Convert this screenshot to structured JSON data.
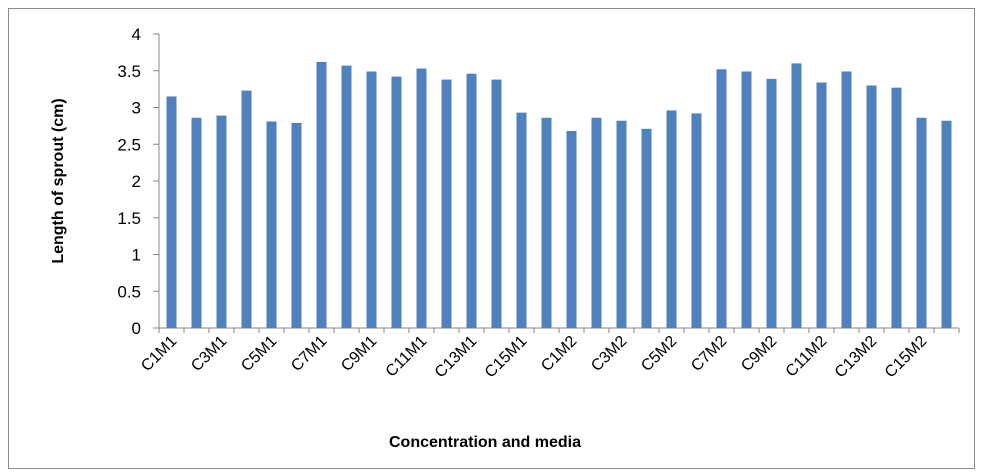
{
  "chart_data": {
    "type": "bar",
    "title": "",
    "xlabel": "Concentration and media",
    "ylabel": "Length of sprout (cm)",
    "ylim": [
      0,
      4
    ],
    "yticks": [
      "0",
      "0.5",
      "1",
      "1.5",
      "2",
      "2.5",
      "3",
      "3.5",
      "4"
    ],
    "grid": false,
    "legend": "none",
    "bar_color": "#4F81BD",
    "categories": [
      "C1M1",
      "C2M1",
      "C3M1",
      "C4M1",
      "C5M1",
      "C6M1",
      "C7M1",
      "C8M1",
      "C9M1",
      "C10M1",
      "C11M1",
      "C12M1",
      "C13M1",
      "C14M1",
      "C15M1",
      "C16M1",
      "C1M2",
      "C2M2",
      "C3M2",
      "C4M2",
      "C5M2",
      "C6M2",
      "C7M2",
      "C8M2",
      "C9M2",
      "C10M2",
      "C11M2",
      "C12M2",
      "C13M2",
      "C14M2",
      "C15M2",
      "C16M2"
    ],
    "visible_category_labels": [
      "C1M1",
      "C3M1",
      "C5M1",
      "C7M1",
      "C9M1",
      "C11M1",
      "C13M1",
      "C15M1",
      "C1M2",
      "C3M2",
      "C5M2",
      "C7M2",
      "C9M2",
      "C11M2",
      "C13M2",
      "C15M2"
    ],
    "values": [
      3.15,
      2.86,
      2.89,
      3.23,
      2.81,
      2.79,
      3.62,
      3.57,
      3.49,
      3.42,
      3.53,
      3.38,
      3.46,
      3.38,
      2.93,
      2.86,
      2.68,
      2.86,
      2.82,
      2.71,
      2.96,
      2.92,
      3.52,
      3.49,
      3.39,
      3.6,
      3.34,
      3.49,
      3.3,
      3.27,
      2.86,
      2.82
    ]
  }
}
